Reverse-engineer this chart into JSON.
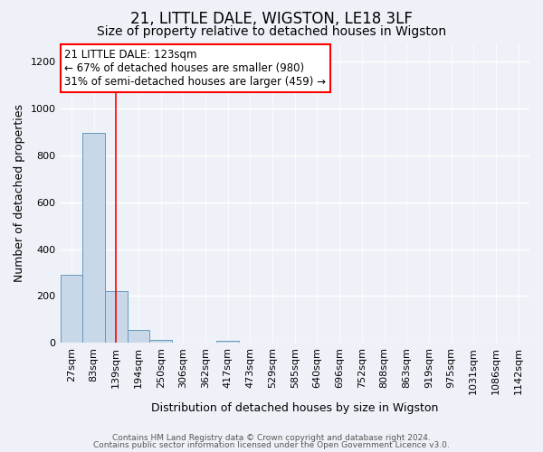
{
  "title": "21, LITTLE DALE, WIGSTON, LE18 3LF",
  "subtitle": "Size of property relative to detached houses in Wigston",
  "xlabel": "Distribution of detached houses by size in Wigston",
  "ylabel": "Number of detached properties",
  "footnote1": "Contains HM Land Registry data © Crown copyright and database right 2024.",
  "footnote2": "Contains public sector information licensed under the Open Government Licence v3.0.",
  "bin_labels": [
    "27sqm",
    "83sqm",
    "139sqm",
    "194sqm",
    "250sqm",
    "306sqm",
    "362sqm",
    "417sqm",
    "473sqm",
    "529sqm",
    "585sqm",
    "640sqm",
    "696sqm",
    "752sqm",
    "808sqm",
    "863sqm",
    "919sqm",
    "975sqm",
    "1031sqm",
    "1086sqm",
    "1142sqm"
  ],
  "bar_heights": [
    290,
    895,
    220,
    55,
    12,
    0,
    0,
    10,
    0,
    0,
    0,
    0,
    0,
    0,
    0,
    0,
    0,
    0,
    0,
    0,
    0
  ],
  "bar_color": "#c8d8e8",
  "bar_edgecolor": "#6699bb",
  "red_line_x": 2,
  "annotation_text": "21 LITTLE DALE: 123sqm\n← 67% of detached houses are smaller (980)\n31% of semi-detached houses are larger (459) →",
  "annotation_box_color": "white",
  "annotation_box_edgecolor": "red",
  "ylim": [
    0,
    1280
  ],
  "yticks": [
    0,
    200,
    400,
    600,
    800,
    1000,
    1200
  ],
  "background_color": "#eef2f8",
  "grid_color": "white",
  "title_fontsize": 12,
  "subtitle_fontsize": 10,
  "ylabel_fontsize": 9,
  "xlabel_fontsize": 9,
  "annotation_fontsize": 8.5,
  "tick_fontsize": 8
}
